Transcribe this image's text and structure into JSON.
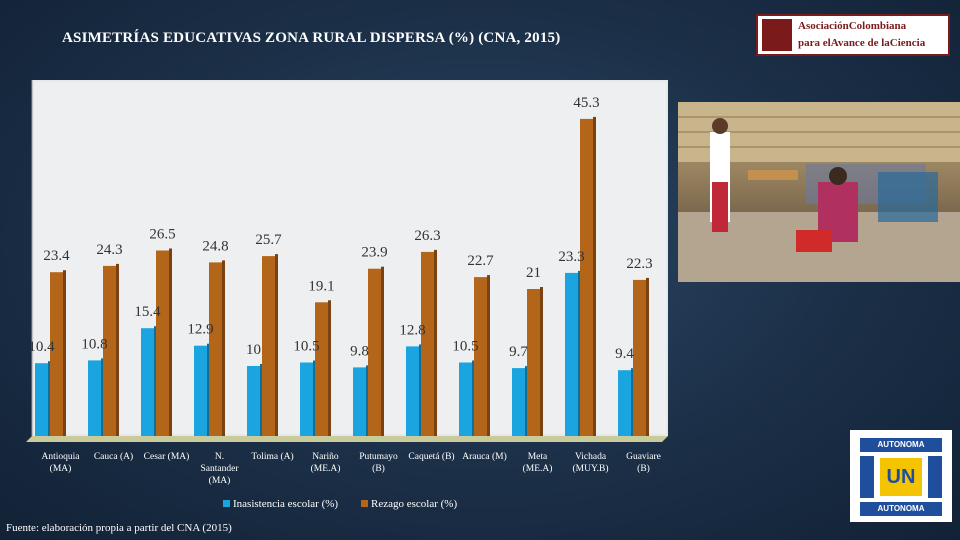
{
  "title": "ASIMETRÍAS EDUCATIVAS ZONA RURAL DISPERSA (%) (CNA, 2015)",
  "logo": {
    "line1": "AsociaciónColombiana",
    "line2": "para elAvance de laCiencia"
  },
  "university_logo": {
    "top": "AUTONOMA",
    "bottom": "AUTONOMA",
    "center": "UN"
  },
  "source": "Fuente: elaboración propia a partir del CNA (2015)",
  "colors": {
    "inasistencia": "#1aa5e0",
    "rezago": "#b3651a"
  },
  "chart_data": {
    "type": "bar",
    "title": "ASIMETRÍAS EDUCATIVAS ZONA RURAL DISPERSA (%) (CNA, 2015)",
    "xlabel": "",
    "ylabel": "",
    "ylim": [
      0,
      50
    ],
    "grid": false,
    "legend_position": "bottom",
    "categories": [
      [
        "Antioquia",
        "(MA)"
      ],
      [
        "Cauca (A)"
      ],
      [
        "Cesar (MA)"
      ],
      [
        "N.",
        "Santander",
        "(MA)"
      ],
      [
        "Tolima (A)"
      ],
      [
        "Nariño",
        "(ME.A)"
      ],
      [
        "Putumayo",
        "(B)"
      ],
      [
        "Caquetá (B)"
      ],
      [
        "Arauca (M)"
      ],
      [
        "Meta",
        "(ME.A)"
      ],
      [
        "Vichada",
        "(MUY.B)"
      ],
      [
        "Guaviare",
        "(B)"
      ]
    ],
    "series": [
      {
        "name": "Inasistencia escolar (%)",
        "values": [
          10.4,
          10.8,
          15.4,
          12.9,
          10,
          10.5,
          9.8,
          12.8,
          10.5,
          9.7,
          23.3,
          9.4
        ],
        "labels": [
          "10.4",
          "10.8",
          "15.4",
          "12.9",
          "10",
          "10.5",
          "9.8",
          "12.8",
          "10.5",
          "9.7",
          "23.3",
          "9.4"
        ]
      },
      {
        "name": "Rezago escolar (%)",
        "values": [
          23.4,
          24.3,
          26.5,
          24.8,
          25.7,
          19.1,
          23.9,
          26.3,
          22.7,
          21,
          45.3,
          22.3
        ],
        "labels": [
          "23.4",
          "24.3",
          "26.5",
          "24.8",
          "25.7",
          "19.1",
          "23.9",
          "26.3",
          "22.7",
          "21",
          "45.3",
          "22.3"
        ]
      }
    ]
  }
}
